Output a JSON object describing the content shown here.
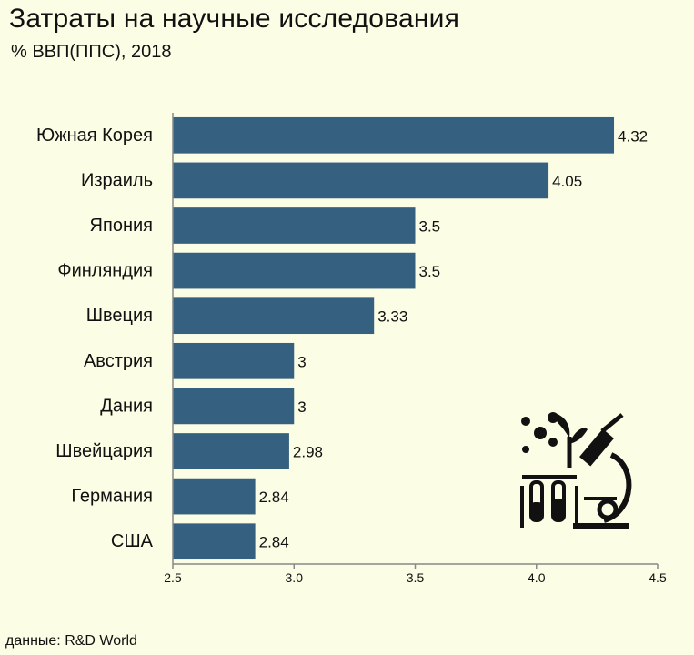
{
  "chart_data": {
    "type": "bar",
    "orientation": "horizontal",
    "title": "Затраты на научные исследования",
    "subtitle": "% ВВП(ППС), 2018",
    "source": "данные: R&D World",
    "categories": [
      "Южная Корея",
      "Израиль",
      "Япония",
      "Финляндия",
      "Швеция",
      "Австрия",
      "Дания",
      "Швейцария",
      "Германия",
      "США"
    ],
    "values": [
      4.32,
      4.05,
      3.5,
      3.5,
      3.33,
      3,
      3,
      2.98,
      2.84,
      2.84
    ],
    "value_labels": [
      "4.32",
      "4.05",
      "3.5",
      "3.5",
      "3.33",
      "3",
      "3",
      "2.98",
      "2.84",
      "2.84"
    ],
    "xlim": [
      2.5,
      4.5
    ],
    "xticks": [
      "2.5",
      "3.0",
      "3.5",
      "4.0",
      "4.5"
    ],
    "xtick_values": [
      2.5,
      3.0,
      3.5,
      4.0,
      4.5
    ],
    "grid": false,
    "bar_color": "#35607f",
    "icon": "science-lab-icon"
  }
}
